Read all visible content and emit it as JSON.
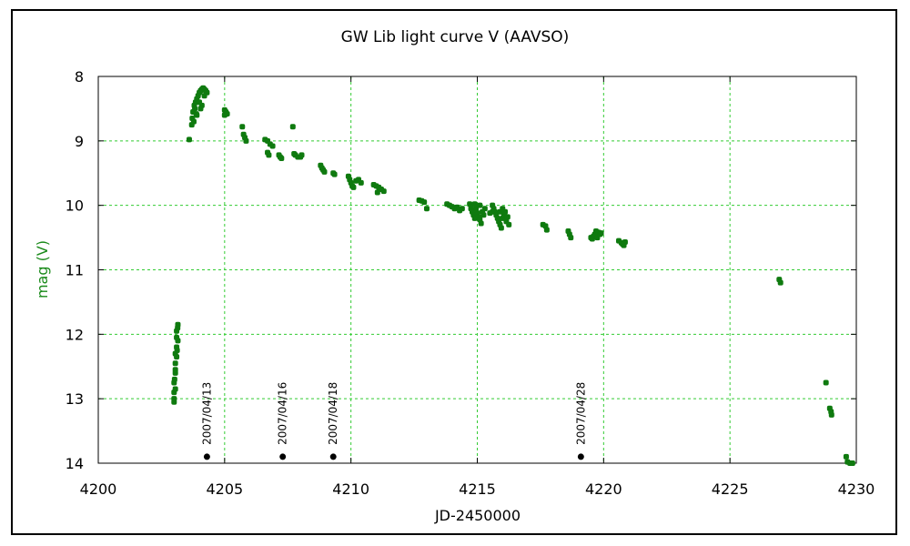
{
  "chart_data": {
    "type": "scatter",
    "title": "GW Lib light curve V (AAVSO)",
    "xlabel": "JD-2450000",
    "ylabel": "mag (V)",
    "xlim": [
      4200,
      4230
    ],
    "ylim": [
      8,
      14
    ],
    "y_inverted": true,
    "grid": true,
    "xticks": [
      4200,
      4205,
      4210,
      4215,
      4220,
      4225,
      4230
    ],
    "yticks": [
      8,
      9,
      10,
      11,
      12,
      13,
      14
    ],
    "colors": {
      "series": "#0f7a0f",
      "grid": "#33cc33",
      "markers": "#000000"
    },
    "series": [
      {
        "points": [
          [
            4203.0,
            13.05
          ],
          [
            4203.0,
            12.9
          ],
          [
            4203.0,
            12.75
          ],
          [
            4203.05,
            12.6
          ],
          [
            4203.05,
            12.45
          ],
          [
            4203.05,
            12.3
          ],
          [
            4203.1,
            12.2
          ],
          [
            4203.1,
            12.05
          ],
          [
            4203.1,
            11.95
          ],
          [
            4203.15,
            11.85
          ],
          [
            4203.15,
            12.1
          ],
          [
            4203.05,
            12.85
          ],
          [
            4203.0,
            13.0
          ],
          [
            4203.05,
            12.55
          ],
          [
            4203.1,
            12.35
          ],
          [
            4203.12,
            12.25
          ],
          [
            4203.14,
            11.9
          ],
          [
            4203.02,
            12.7
          ],
          [
            4203.6,
            8.98
          ],
          [
            4203.7,
            8.75
          ],
          [
            4203.72,
            8.65
          ],
          [
            4203.75,
            8.55
          ],
          [
            4203.8,
            8.45
          ],
          [
            4203.85,
            8.4
          ],
          [
            4203.9,
            8.35
          ],
          [
            4203.95,
            8.3
          ],
          [
            4204.0,
            8.25
          ],
          [
            4204.05,
            8.22
          ],
          [
            4204.1,
            8.2
          ],
          [
            4204.15,
            8.18
          ],
          [
            4204.2,
            8.2
          ],
          [
            4204.25,
            8.22
          ],
          [
            4204.3,
            8.25
          ],
          [
            4203.78,
            8.7
          ],
          [
            4203.82,
            8.5
          ],
          [
            4203.88,
            8.58
          ],
          [
            4204.0,
            8.4
          ],
          [
            4204.1,
            8.45
          ],
          [
            4204.2,
            8.3
          ],
          [
            4203.9,
            8.6
          ],
          [
            4204.05,
            8.5
          ],
          [
            4205.0,
            8.52
          ],
          [
            4205.05,
            8.55
          ],
          [
            4205.1,
            8.58
          ],
          [
            4205.0,
            8.6
          ],
          [
            4205.7,
            8.78
          ],
          [
            4205.75,
            8.9
          ],
          [
            4205.8,
            8.95
          ],
          [
            4205.85,
            9.0
          ],
          [
            4206.6,
            8.98
          ],
          [
            4206.7,
            9.0
          ],
          [
            4206.8,
            9.05
          ],
          [
            4206.9,
            9.08
          ],
          [
            4206.7,
            9.18
          ],
          [
            4206.75,
            9.22
          ],
          [
            4207.15,
            9.22
          ],
          [
            4207.2,
            9.25
          ],
          [
            4207.25,
            9.27
          ],
          [
            4207.7,
            8.78
          ],
          [
            4207.75,
            9.2
          ],
          [
            4207.8,
            9.22
          ],
          [
            4207.9,
            9.25
          ],
          [
            4208.0,
            9.25
          ],
          [
            4208.05,
            9.22
          ],
          [
            4208.8,
            9.38
          ],
          [
            4208.85,
            9.42
          ],
          [
            4208.9,
            9.45
          ],
          [
            4208.95,
            9.48
          ],
          [
            4209.3,
            9.5
          ],
          [
            4209.35,
            9.52
          ],
          [
            4209.9,
            9.55
          ],
          [
            4209.95,
            9.6
          ],
          [
            4210.0,
            9.65
          ],
          [
            4210.05,
            9.7
          ],
          [
            4210.1,
            9.72
          ],
          [
            4210.2,
            9.62
          ],
          [
            4210.3,
            9.6
          ],
          [
            4210.4,
            9.65
          ],
          [
            4210.9,
            9.68
          ],
          [
            4211.0,
            9.7
          ],
          [
            4211.1,
            9.72
          ],
          [
            4211.2,
            9.75
          ],
          [
            4211.3,
            9.78
          ],
          [
            4211.05,
            9.8
          ],
          [
            4212.7,
            9.92
          ],
          [
            4212.8,
            9.93
          ],
          [
            4212.9,
            9.95
          ],
          [
            4213.0,
            10.05
          ],
          [
            4213.8,
            9.98
          ],
          [
            4213.9,
            10.0
          ],
          [
            4214.0,
            10.02
          ],
          [
            4214.1,
            10.05
          ],
          [
            4214.2,
            10.03
          ],
          [
            4214.3,
            10.08
          ],
          [
            4214.4,
            10.05
          ],
          [
            4214.7,
            9.98
          ],
          [
            4214.75,
            10.05
          ],
          [
            4214.8,
            10.1
          ],
          [
            4214.85,
            10.15
          ],
          [
            4214.9,
            10.2
          ],
          [
            4214.95,
            10.05
          ],
          [
            4215.0,
            10.12
          ],
          [
            4215.05,
            10.18
          ],
          [
            4215.1,
            10.22
          ],
          [
            4215.15,
            10.28
          ],
          [
            4215.2,
            10.1
          ],
          [
            4215.25,
            10.15
          ],
          [
            4215.3,
            10.05
          ],
          [
            4214.9,
            9.98
          ],
          [
            4215.1,
            10.0
          ],
          [
            4215.5,
            10.12
          ],
          [
            4215.6,
            10.1
          ],
          [
            4215.6,
            10.0
          ],
          [
            4215.65,
            10.05
          ],
          [
            4215.7,
            10.1
          ],
          [
            4215.75,
            10.15
          ],
          [
            4215.8,
            10.2
          ],
          [
            4215.85,
            10.25
          ],
          [
            4215.9,
            10.3
          ],
          [
            4215.95,
            10.35
          ],
          [
            4216.0,
            10.2
          ],
          [
            4216.05,
            10.15
          ],
          [
            4216.1,
            10.1
          ],
          [
            4216.15,
            10.25
          ],
          [
            4216.2,
            10.18
          ],
          [
            4216.25,
            10.3
          ],
          [
            4215.9,
            10.1
          ],
          [
            4216.0,
            10.05
          ],
          [
            4217.6,
            10.3
          ],
          [
            4217.7,
            10.32
          ],
          [
            4217.75,
            10.38
          ],
          [
            4218.6,
            10.4
          ],
          [
            4218.65,
            10.45
          ],
          [
            4218.7,
            10.5
          ],
          [
            4219.5,
            10.5
          ],
          [
            4219.55,
            10.52
          ],
          [
            4219.6,
            10.48
          ],
          [
            4219.65,
            10.45
          ],
          [
            4219.7,
            10.4
          ],
          [
            4219.75,
            10.5
          ],
          [
            4219.8,
            10.42
          ],
          [
            4219.85,
            10.45
          ],
          [
            4219.9,
            10.43
          ],
          [
            4220.6,
            10.55
          ],
          [
            4220.7,
            10.58
          ],
          [
            4220.75,
            10.6
          ],
          [
            4220.8,
            10.62
          ],
          [
            4220.85,
            10.57
          ],
          [
            4226.95,
            11.15
          ],
          [
            4227.0,
            11.2
          ],
          [
            4228.8,
            12.75
          ],
          [
            4228.95,
            13.15
          ],
          [
            4229.0,
            13.2
          ],
          [
            4229.02,
            13.25
          ],
          [
            4229.6,
            13.9
          ],
          [
            4229.65,
            13.98
          ],
          [
            4229.75,
            14.0
          ],
          [
            4229.85,
            14.0
          ]
        ]
      }
    ],
    "annotations": [
      {
        "label": "2007/04/13",
        "x": 4204.3,
        "y": 13.9
      },
      {
        "label": "2007/04/16",
        "x": 4207.3,
        "y": 13.9
      },
      {
        "label": "2007/04/18",
        "x": 4209.3,
        "y": 13.9
      },
      {
        "label": "2007/04/28",
        "x": 4219.1,
        "y": 13.9
      }
    ]
  }
}
